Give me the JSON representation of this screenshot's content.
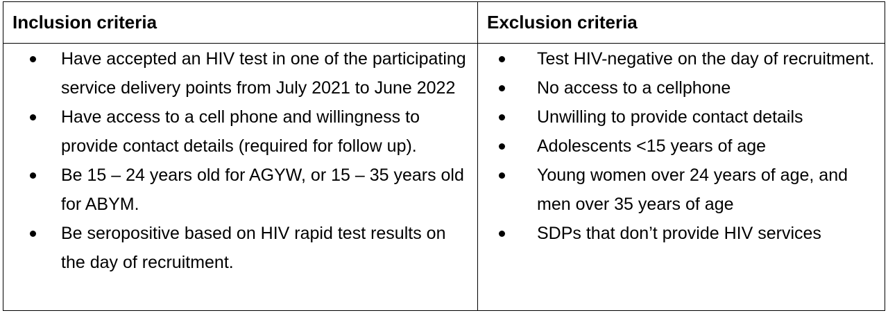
{
  "table": {
    "headers": [
      "Inclusion criteria",
      "Exclusion criteria"
    ],
    "inclusion": [
      "Have accepted an HIV test in one of the participating service delivery points from July 2021 to June 2022",
      "Have access to a cell phone and willingness to provide contact details (required for follow up).",
      "Be 15 – 24 years old for AGYW, or 15 – 35 years old for ABYM.",
      "Be seropositive based on HIV rapid test results on the day of recruitment."
    ],
    "exclusion": [
      "Test HIV-negative on the day of recruitment.",
      "No access to a cellphone",
      "Unwilling to provide contact details",
      "Adolescents <15 years of age",
      "Young women over 24 years of age, and men over 35 years of age",
      "SDPs that don’t provide HIV services"
    ]
  }
}
